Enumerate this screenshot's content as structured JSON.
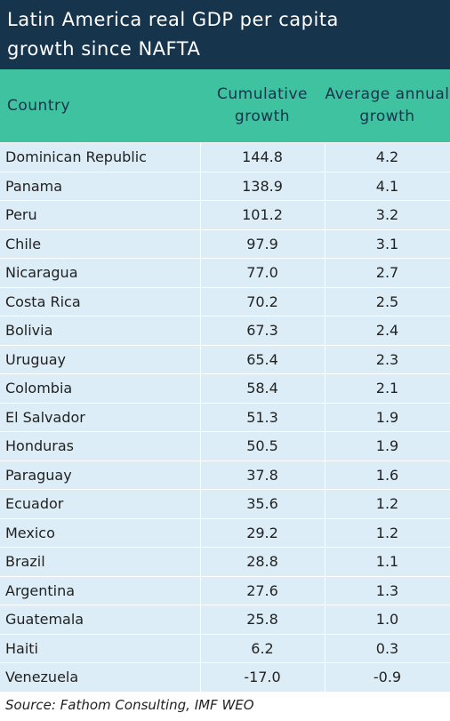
{
  "header": {
    "title_line1": "Latin America real GDP per capita",
    "title_line2": "growth since NAFTA"
  },
  "table": {
    "columns": [
      "Country",
      "Cumulative growth",
      "Average annual growth"
    ],
    "rows": [
      [
        "Dominican Republic",
        "144.8",
        "4.2"
      ],
      [
        "Panama",
        "138.9",
        "4.1"
      ],
      [
        "Peru",
        "101.2",
        "3.2"
      ],
      [
        "Chile",
        "97.9",
        "3.1"
      ],
      [
        "Nicaragua",
        "77.0",
        "2.7"
      ],
      [
        "Costa Rica",
        "70.2",
        "2.5"
      ],
      [
        "Bolivia",
        "67.3",
        "2.4"
      ],
      [
        "Uruguay",
        "65.4",
        "2.3"
      ],
      [
        "Colombia",
        "58.4",
        "2.1"
      ],
      [
        "El Salvador",
        "51.3",
        "1.9"
      ],
      [
        "Honduras",
        "50.5",
        "1.9"
      ],
      [
        "Paraguay",
        "37.8",
        "1.6"
      ],
      [
        "Ecuador",
        "35.6",
        "1.2"
      ],
      [
        "Mexico",
        "29.2",
        "1.2"
      ],
      [
        "Brazil",
        "28.8",
        "1.1"
      ],
      [
        "Argentina",
        "27.6",
        "1.3"
      ],
      [
        "Guatemala",
        "25.8",
        "1.0"
      ],
      [
        "Haiti",
        "6.2",
        "0.3"
      ],
      [
        "Venezuela",
        "-17.0",
        "-0.9"
      ]
    ]
  },
  "footer": {
    "source": "Source: Fathom Consulting, IMF WEO"
  }
}
